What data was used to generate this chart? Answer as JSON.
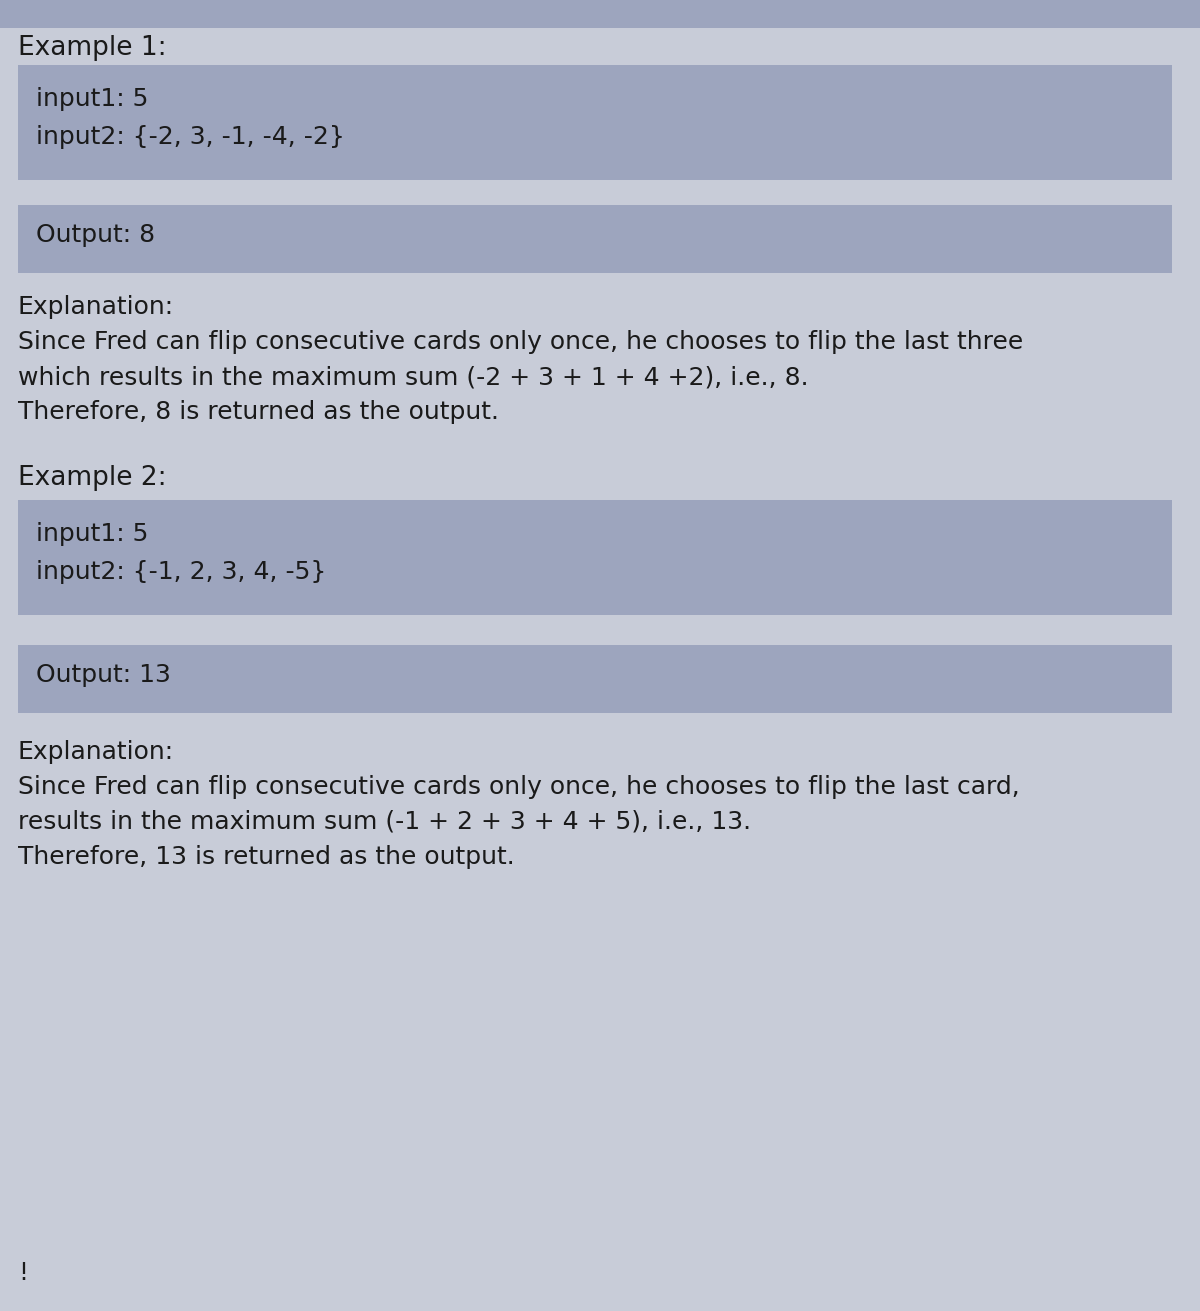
{
  "bg_color": "#c8ccd8",
  "box_color": "#9da5be",
  "text_color": "#1a1a1a",
  "top_band_color": "#9da5be",
  "fig_width": 12.0,
  "fig_height": 13.11,
  "dpi": 100,
  "example1_header": "Example 1:",
  "example1_input_line1": "input1: 5",
  "example1_input_line2": "input2: {-2, 3, -1, -4, -2}",
  "example1_output": "Output: 8",
  "example1_exp_title": "Explanation:",
  "example1_exp_line1": "Since Fred can flip consecutive cards only once, he chooses to flip the last three",
  "example1_exp_line2": "which results in the maximum sum (-2 + 3 + 1 + 4 +2), i.e., 8.",
  "example1_exp_line3": "Therefore, 8 is returned as the output.",
  "example2_header": "Example 2:",
  "example2_input_line1": "input1: 5",
  "example2_input_line2": "input2: {-1, 2, 3, 4, -5}",
  "example2_output": "Output: 13",
  "example2_exp_title": "Explanation:",
  "example2_exp_line1": "Since Fred can flip consecutive cards only once, he chooses to flip the last card,",
  "example2_exp_line2": "results in the maximum sum (-1 + 2 + 3 + 4 + 5), i.e., 13.",
  "example2_exp_line3": "Therefore, 13 is returned as the output.",
  "footer": "!",
  "font_size_header": 19,
  "font_size_box": 18,
  "font_size_explanation": 18
}
